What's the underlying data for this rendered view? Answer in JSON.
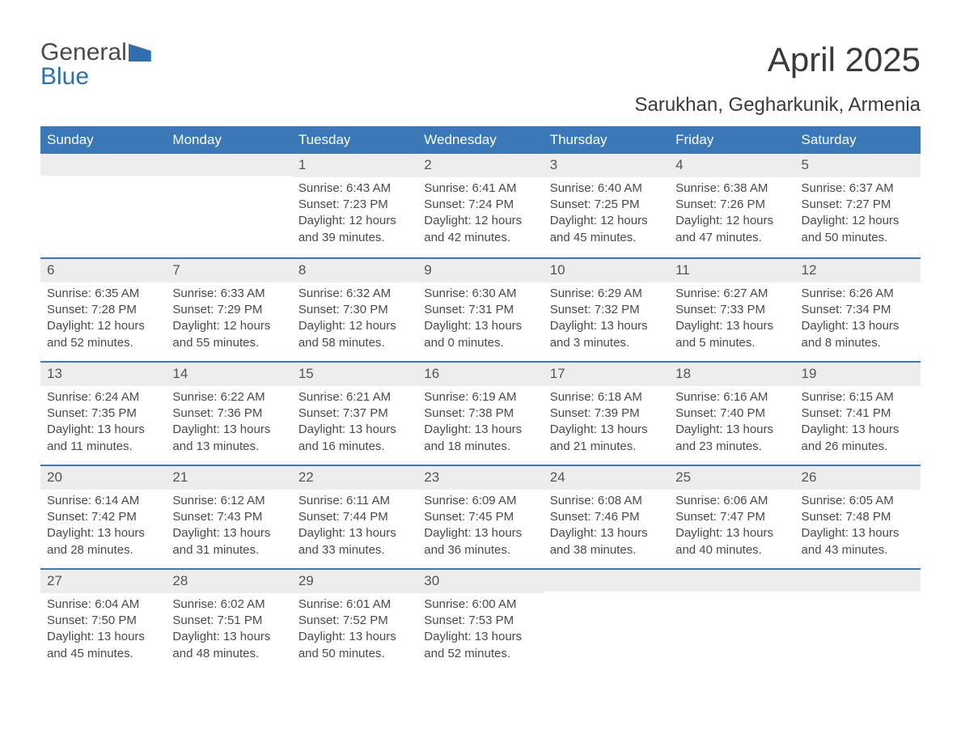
{
  "brand": {
    "general": "General",
    "blue": "Blue"
  },
  "title": "April 2025",
  "subtitle": "Sarukhan, Gegharkunik, Armenia",
  "colors": {
    "brand_blue": "#2f6fb0",
    "header_blue": "#3b78b8",
    "daynum_bg": "#ededed",
    "text": "#4a4a4a",
    "background": "#ffffff"
  },
  "typography": {
    "title_fontsize": 42,
    "subtitle_fontsize": 24,
    "dow_fontsize": 17,
    "body_fontsize": 15
  },
  "dow": [
    "Sunday",
    "Monday",
    "Tuesday",
    "Wednesday",
    "Thursday",
    "Friday",
    "Saturday"
  ],
  "weeks": [
    [
      null,
      null,
      {
        "n": "1",
        "sunrise": "Sunrise: 6:43 AM",
        "sunset": "Sunset: 7:23 PM",
        "day": "Daylight: 12 hours and 39 minutes."
      },
      {
        "n": "2",
        "sunrise": "Sunrise: 6:41 AM",
        "sunset": "Sunset: 7:24 PM",
        "day": "Daylight: 12 hours and 42 minutes."
      },
      {
        "n": "3",
        "sunrise": "Sunrise: 6:40 AM",
        "sunset": "Sunset: 7:25 PM",
        "day": "Daylight: 12 hours and 45 minutes."
      },
      {
        "n": "4",
        "sunrise": "Sunrise: 6:38 AM",
        "sunset": "Sunset: 7:26 PM",
        "day": "Daylight: 12 hours and 47 minutes."
      },
      {
        "n": "5",
        "sunrise": "Sunrise: 6:37 AM",
        "sunset": "Sunset: 7:27 PM",
        "day": "Daylight: 12 hours and 50 minutes."
      }
    ],
    [
      {
        "n": "6",
        "sunrise": "Sunrise: 6:35 AM",
        "sunset": "Sunset: 7:28 PM",
        "day": "Daylight: 12 hours and 52 minutes."
      },
      {
        "n": "7",
        "sunrise": "Sunrise: 6:33 AM",
        "sunset": "Sunset: 7:29 PM",
        "day": "Daylight: 12 hours and 55 minutes."
      },
      {
        "n": "8",
        "sunrise": "Sunrise: 6:32 AM",
        "sunset": "Sunset: 7:30 PM",
        "day": "Daylight: 12 hours and 58 minutes."
      },
      {
        "n": "9",
        "sunrise": "Sunrise: 6:30 AM",
        "sunset": "Sunset: 7:31 PM",
        "day": "Daylight: 13 hours and 0 minutes."
      },
      {
        "n": "10",
        "sunrise": "Sunrise: 6:29 AM",
        "sunset": "Sunset: 7:32 PM",
        "day": "Daylight: 13 hours and 3 minutes."
      },
      {
        "n": "11",
        "sunrise": "Sunrise: 6:27 AM",
        "sunset": "Sunset: 7:33 PM",
        "day": "Daylight: 13 hours and 5 minutes."
      },
      {
        "n": "12",
        "sunrise": "Sunrise: 6:26 AM",
        "sunset": "Sunset: 7:34 PM",
        "day": "Daylight: 13 hours and 8 minutes."
      }
    ],
    [
      {
        "n": "13",
        "sunrise": "Sunrise: 6:24 AM",
        "sunset": "Sunset: 7:35 PM",
        "day": "Daylight: 13 hours and 11 minutes."
      },
      {
        "n": "14",
        "sunrise": "Sunrise: 6:22 AM",
        "sunset": "Sunset: 7:36 PM",
        "day": "Daylight: 13 hours and 13 minutes."
      },
      {
        "n": "15",
        "sunrise": "Sunrise: 6:21 AM",
        "sunset": "Sunset: 7:37 PM",
        "day": "Daylight: 13 hours and 16 minutes."
      },
      {
        "n": "16",
        "sunrise": "Sunrise: 6:19 AM",
        "sunset": "Sunset: 7:38 PM",
        "day": "Daylight: 13 hours and 18 minutes."
      },
      {
        "n": "17",
        "sunrise": "Sunrise: 6:18 AM",
        "sunset": "Sunset: 7:39 PM",
        "day": "Daylight: 13 hours and 21 minutes."
      },
      {
        "n": "18",
        "sunrise": "Sunrise: 6:16 AM",
        "sunset": "Sunset: 7:40 PM",
        "day": "Daylight: 13 hours and 23 minutes."
      },
      {
        "n": "19",
        "sunrise": "Sunrise: 6:15 AM",
        "sunset": "Sunset: 7:41 PM",
        "day": "Daylight: 13 hours and 26 minutes."
      }
    ],
    [
      {
        "n": "20",
        "sunrise": "Sunrise: 6:14 AM",
        "sunset": "Sunset: 7:42 PM",
        "day": "Daylight: 13 hours and 28 minutes."
      },
      {
        "n": "21",
        "sunrise": "Sunrise: 6:12 AM",
        "sunset": "Sunset: 7:43 PM",
        "day": "Daylight: 13 hours and 31 minutes."
      },
      {
        "n": "22",
        "sunrise": "Sunrise: 6:11 AM",
        "sunset": "Sunset: 7:44 PM",
        "day": "Daylight: 13 hours and 33 minutes."
      },
      {
        "n": "23",
        "sunrise": "Sunrise: 6:09 AM",
        "sunset": "Sunset: 7:45 PM",
        "day": "Daylight: 13 hours and 36 minutes."
      },
      {
        "n": "24",
        "sunrise": "Sunrise: 6:08 AM",
        "sunset": "Sunset: 7:46 PM",
        "day": "Daylight: 13 hours and 38 minutes."
      },
      {
        "n": "25",
        "sunrise": "Sunrise: 6:06 AM",
        "sunset": "Sunset: 7:47 PM",
        "day": "Daylight: 13 hours and 40 minutes."
      },
      {
        "n": "26",
        "sunrise": "Sunrise: 6:05 AM",
        "sunset": "Sunset: 7:48 PM",
        "day": "Daylight: 13 hours and 43 minutes."
      }
    ],
    [
      {
        "n": "27",
        "sunrise": "Sunrise: 6:04 AM",
        "sunset": "Sunset: 7:50 PM",
        "day": "Daylight: 13 hours and 45 minutes."
      },
      {
        "n": "28",
        "sunrise": "Sunrise: 6:02 AM",
        "sunset": "Sunset: 7:51 PM",
        "day": "Daylight: 13 hours and 48 minutes."
      },
      {
        "n": "29",
        "sunrise": "Sunrise: 6:01 AM",
        "sunset": "Sunset: 7:52 PM",
        "day": "Daylight: 13 hours and 50 minutes."
      },
      {
        "n": "30",
        "sunrise": "Sunrise: 6:00 AM",
        "sunset": "Sunset: 7:53 PM",
        "day": "Daylight: 13 hours and 52 minutes."
      },
      null,
      null,
      null
    ]
  ]
}
